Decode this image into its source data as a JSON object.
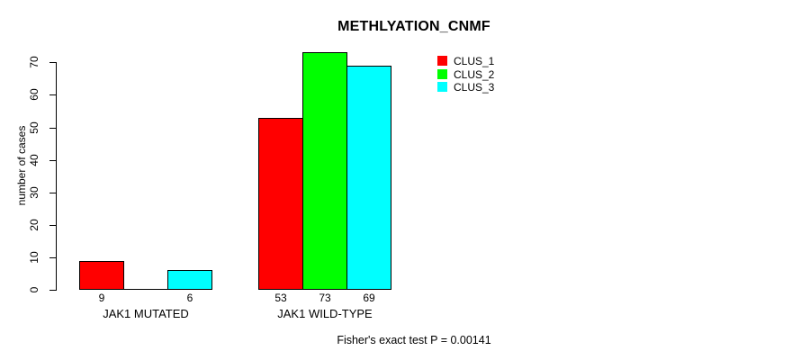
{
  "chart_data": {
    "type": "bar",
    "title": "METHLYATION_CNMF",
    "ylabel": "number of cases",
    "xlabel": "",
    "categories": [
      "JAK1 MUTATED",
      "JAK1 WILD-TYPE"
    ],
    "series": [
      {
        "name": "CLUS_1",
        "color": "#ff0000",
        "values": [
          9,
          53
        ]
      },
      {
        "name": "CLUS_2",
        "color": "#00ff00",
        "values": [
          0,
          73
        ]
      },
      {
        "name": "CLUS_3",
        "color": "#00ffff",
        "values": [
          6,
          69
        ]
      }
    ],
    "bar_value_labels": [
      [
        "9",
        "",
        "6"
      ],
      [
        "53",
        "73",
        "69"
      ]
    ],
    "yticks": [
      0,
      10,
      20,
      30,
      40,
      50,
      60,
      70
    ],
    "ylim": [
      0,
      73
    ],
    "grid": false,
    "legend_position": "top-right",
    "legend_entries": [
      "CLUS_1",
      "CLUS_2",
      "CLUS_3"
    ],
    "annotation": "Fisher's exact test P = 0.00141",
    "colors": {
      "bar_outline": "#000000",
      "text": "#000000",
      "background": "#ffffff"
    }
  }
}
